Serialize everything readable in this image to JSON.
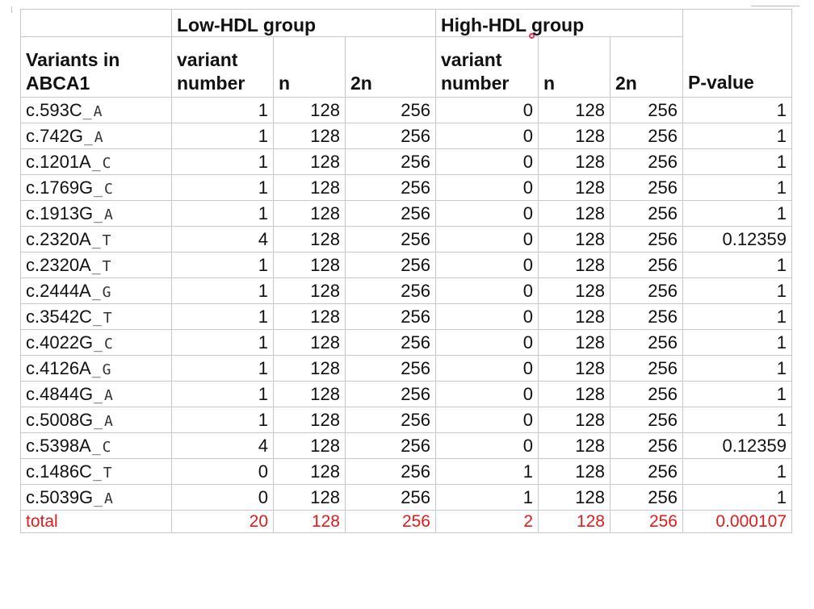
{
  "table": {
    "group_headers": {
      "low": "Low-HDL group",
      "high": "High-HDL group"
    },
    "column_headers": {
      "variants": [
        "Variants in",
        "ABCA1"
      ],
      "low_variant_number": [
        "variant",
        "number"
      ],
      "low_n": "n",
      "low_2n": "2n",
      "high_variant_number": [
        "variant",
        "number"
      ],
      "high_n": "n",
      "high_2n": "2n",
      "p_value": "P-value"
    },
    "rows": [
      {
        "variant": [
          "c.593C",
          "A"
        ],
        "low_vn": "1",
        "low_n": "128",
        "low_2n": "256",
        "high_vn": "0",
        "high_n": "128",
        "high_2n": "256",
        "p": "1"
      },
      {
        "variant": [
          "c.742G",
          "A"
        ],
        "low_vn": "1",
        "low_n": "128",
        "low_2n": "256",
        "high_vn": "0",
        "high_n": "128",
        "high_2n": "256",
        "p": "1"
      },
      {
        "variant": [
          "c.1201A",
          "C"
        ],
        "low_vn": "1",
        "low_n": "128",
        "low_2n": "256",
        "high_vn": "0",
        "high_n": "128",
        "high_2n": "256",
        "p": "1"
      },
      {
        "variant": [
          "c.1769G",
          "C"
        ],
        "low_vn": "1",
        "low_n": "128",
        "low_2n": "256",
        "high_vn": "0",
        "high_n": "128",
        "high_2n": "256",
        "p": "1"
      },
      {
        "variant": [
          "c.1913G",
          "A"
        ],
        "low_vn": "1",
        "low_n": "128",
        "low_2n": "256",
        "high_vn": "0",
        "high_n": "128",
        "high_2n": "256",
        "p": "1"
      },
      {
        "variant": [
          "c.2320A",
          "T"
        ],
        "low_vn": "4",
        "low_n": "128",
        "low_2n": "256",
        "high_vn": "0",
        "high_n": "128",
        "high_2n": "256",
        "p": "0.12359"
      },
      {
        "variant": [
          "c.2320A",
          "T"
        ],
        "low_vn": "1",
        "low_n": "128",
        "low_2n": "256",
        "high_vn": "0",
        "high_n": "128",
        "high_2n": "256",
        "p": "1"
      },
      {
        "variant": [
          "c.2444A",
          "G"
        ],
        "low_vn": "1",
        "low_n": "128",
        "low_2n": "256",
        "high_vn": "0",
        "high_n": "128",
        "high_2n": "256",
        "p": "1"
      },
      {
        "variant": [
          "c.3542C",
          "T"
        ],
        "low_vn": "1",
        "low_n": "128",
        "low_2n": "256",
        "high_vn": "0",
        "high_n": "128",
        "high_2n": "256",
        "p": "1"
      },
      {
        "variant": [
          "c.4022G",
          "C"
        ],
        "low_vn": "1",
        "low_n": "128",
        "low_2n": "256",
        "high_vn": "0",
        "high_n": "128",
        "high_2n": "256",
        "p": "1"
      },
      {
        "variant": [
          "c.4126A",
          "G"
        ],
        "low_vn": "1",
        "low_n": "128",
        "low_2n": "256",
        "high_vn": "0",
        "high_n": "128",
        "high_2n": "256",
        "p": "1"
      },
      {
        "variant": [
          "c.4844G",
          "A"
        ],
        "low_vn": "1",
        "low_n": "128",
        "low_2n": "256",
        "high_vn": "0",
        "high_n": "128",
        "high_2n": "256",
        "p": "1"
      },
      {
        "variant": [
          "c.5008G",
          "A"
        ],
        "low_vn": "1",
        "low_n": "128",
        "low_2n": "256",
        "high_vn": "0",
        "high_n": "128",
        "high_2n": "256",
        "p": "1"
      },
      {
        "variant": [
          "c.5398A",
          "C"
        ],
        "low_vn": "4",
        "low_n": "128",
        "low_2n": "256",
        "high_vn": "0",
        "high_n": "128",
        "high_2n": "256",
        "p": "0.12359"
      },
      {
        "variant": [
          "c.1486C",
          "T"
        ],
        "low_vn": "0",
        "low_n": "128",
        "low_2n": "256",
        "high_vn": "1",
        "high_n": "128",
        "high_2n": "256",
        "p": "1"
      },
      {
        "variant": [
          "c.5039G",
          "A"
        ],
        "low_vn": "0",
        "low_n": "128",
        "low_2n": "256",
        "high_vn": "1",
        "high_n": "128",
        "high_2n": "256",
        "p": "1"
      }
    ],
    "total": {
      "label": "total",
      "low_vn": "20",
      "low_n": "128",
      "low_2n": "256",
      "high_vn": "2",
      "high_n": "128",
      "high_2n": "256",
      "p": "0.000107"
    },
    "colors": {
      "total_text": "#e11b1b",
      "cursor_dot": "#e8364a",
      "grid": "#c8c8c8"
    }
  }
}
